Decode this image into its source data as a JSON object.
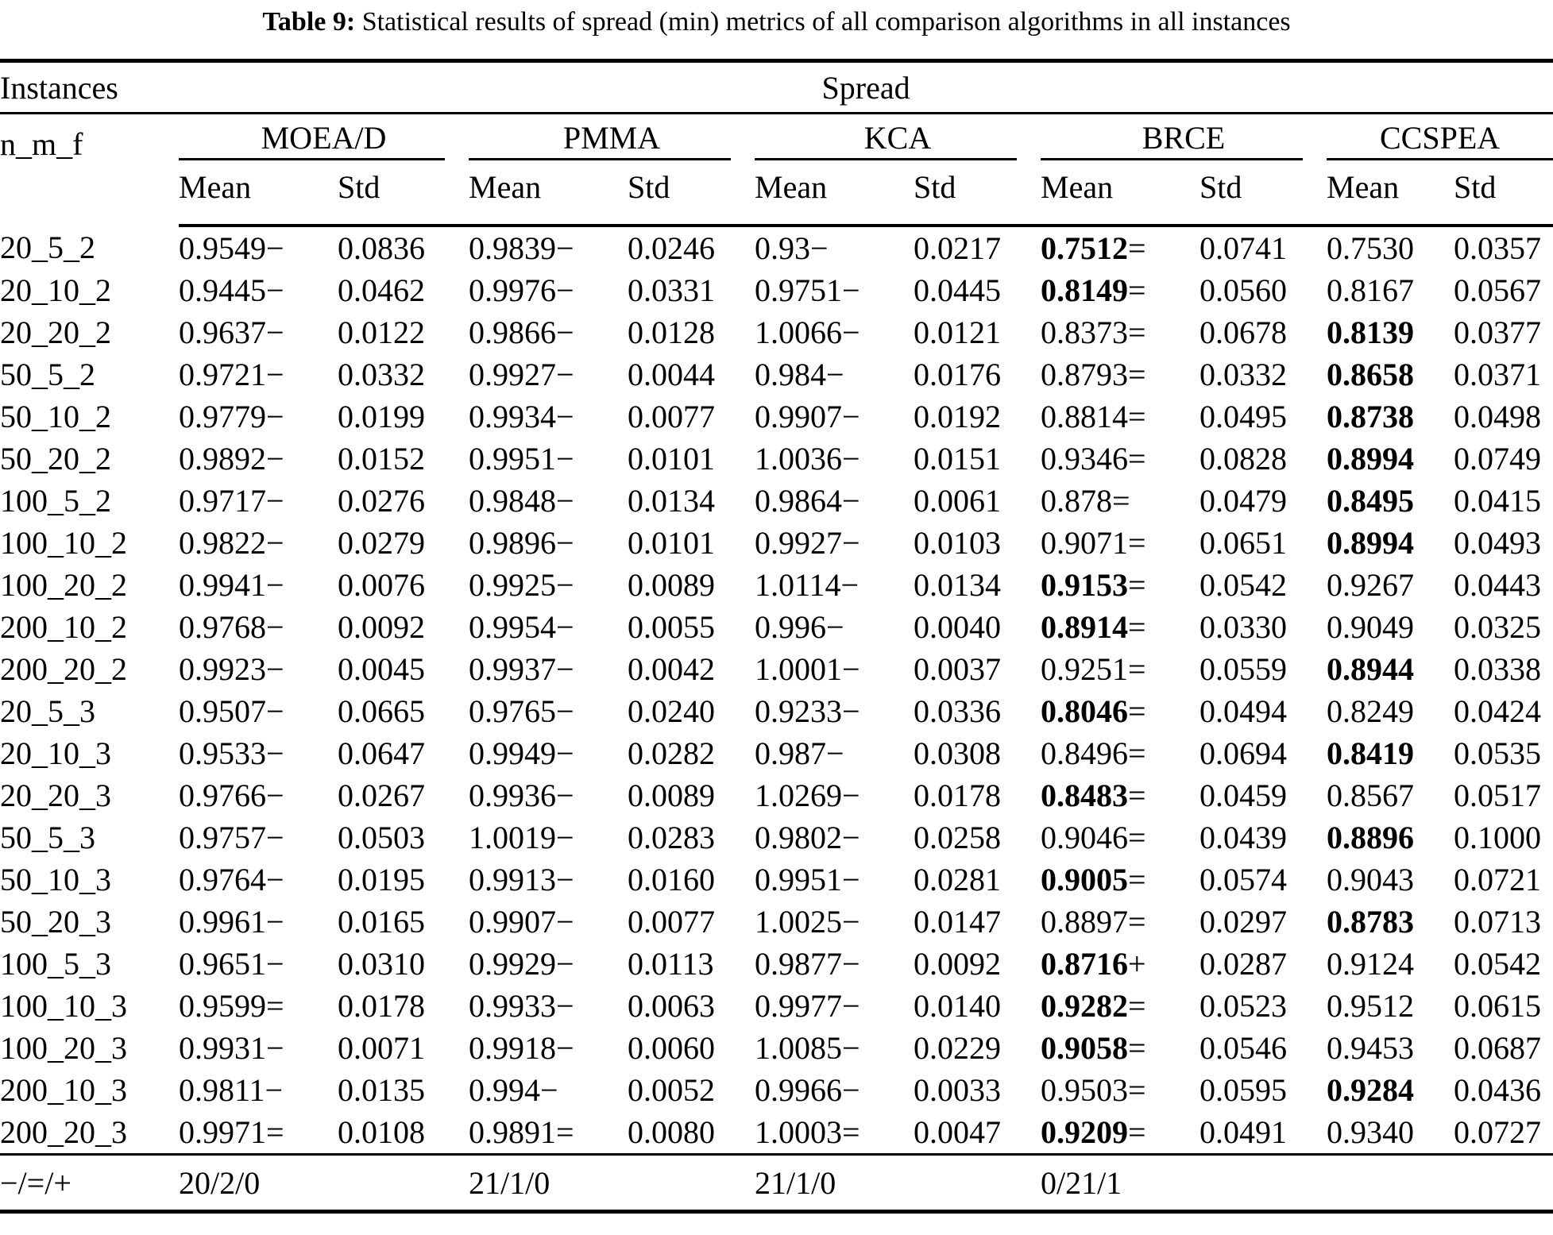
{
  "title": {
    "label": "Table 9:",
    "text": "Statistical results of spread (min) metrics of all comparison algorithms in all instances"
  },
  "header": {
    "instances": "Instances",
    "spread": "Spread",
    "instance_sub": "n_m_f",
    "algorithms": [
      "MOEA/D",
      "PMMA",
      "KCA",
      "BRCE",
      "CCSPEA"
    ],
    "stats": [
      "Mean",
      "Std"
    ]
  },
  "rows": [
    {
      "instance": "20_5_2",
      "cells": [
        {
          "mean": "0.9549",
          "sign": "−",
          "bold": false,
          "std": "0.0836"
        },
        {
          "mean": "0.9839",
          "sign": "−",
          "bold": false,
          "std": "0.0246"
        },
        {
          "mean": "0.93",
          "sign": "−",
          "bold": false,
          "std": "0.0217"
        },
        {
          "mean": "0.7512",
          "sign": "=",
          "bold": true,
          "std": "0.0741"
        },
        {
          "mean": "0.7530",
          "sign": "",
          "bold": false,
          "std": "0.0357"
        }
      ]
    },
    {
      "instance": "20_10_2",
      "cells": [
        {
          "mean": "0.9445",
          "sign": "−",
          "bold": false,
          "std": "0.0462"
        },
        {
          "mean": "0.9976",
          "sign": "−",
          "bold": false,
          "std": "0.0331"
        },
        {
          "mean": "0.9751",
          "sign": "−",
          "bold": false,
          "std": "0.0445"
        },
        {
          "mean": "0.8149",
          "sign": "=",
          "bold": true,
          "std": "0.0560"
        },
        {
          "mean": "0.8167",
          "sign": "",
          "bold": false,
          "std": "0.0567"
        }
      ]
    },
    {
      "instance": "20_20_2",
      "cells": [
        {
          "mean": "0.9637",
          "sign": "−",
          "bold": false,
          "std": "0.0122"
        },
        {
          "mean": "0.9866",
          "sign": "−",
          "bold": false,
          "std": "0.0128"
        },
        {
          "mean": "1.0066",
          "sign": "−",
          "bold": false,
          "std": "0.0121"
        },
        {
          "mean": "0.8373",
          "sign": "=",
          "bold": false,
          "std": "0.0678"
        },
        {
          "mean": "0.8139",
          "sign": "",
          "bold": true,
          "std": "0.0377"
        }
      ]
    },
    {
      "instance": "50_5_2",
      "cells": [
        {
          "mean": "0.9721",
          "sign": "−",
          "bold": false,
          "std": "0.0332"
        },
        {
          "mean": "0.9927",
          "sign": "−",
          "bold": false,
          "std": "0.0044"
        },
        {
          "mean": "0.984",
          "sign": "−",
          "bold": false,
          "std": "0.0176"
        },
        {
          "mean": "0.8793",
          "sign": "=",
          "bold": false,
          "std": "0.0332"
        },
        {
          "mean": "0.8658",
          "sign": "",
          "bold": true,
          "std": "0.0371"
        }
      ]
    },
    {
      "instance": "50_10_2",
      "cells": [
        {
          "mean": "0.9779",
          "sign": "−",
          "bold": false,
          "std": "0.0199"
        },
        {
          "mean": "0.9934",
          "sign": "−",
          "bold": false,
          "std": "0.0077"
        },
        {
          "mean": "0.9907",
          "sign": "−",
          "bold": false,
          "std": "0.0192"
        },
        {
          "mean": "0.8814",
          "sign": "=",
          "bold": false,
          "std": "0.0495"
        },
        {
          "mean": "0.8738",
          "sign": "",
          "bold": true,
          "std": "0.0498"
        }
      ]
    },
    {
      "instance": "50_20_2",
      "cells": [
        {
          "mean": "0.9892",
          "sign": "−",
          "bold": false,
          "std": "0.0152"
        },
        {
          "mean": "0.9951",
          "sign": "−",
          "bold": false,
          "std": "0.0101"
        },
        {
          "mean": "1.0036",
          "sign": "−",
          "bold": false,
          "std": "0.0151"
        },
        {
          "mean": "0.9346",
          "sign": "=",
          "bold": false,
          "std": "0.0828"
        },
        {
          "mean": "0.8994",
          "sign": "",
          "bold": true,
          "std": "0.0749"
        }
      ]
    },
    {
      "instance": "100_5_2",
      "cells": [
        {
          "mean": "0.9717",
          "sign": "−",
          "bold": false,
          "std": "0.0276"
        },
        {
          "mean": "0.9848",
          "sign": "−",
          "bold": false,
          "std": "0.0134"
        },
        {
          "mean": "0.9864",
          "sign": "−",
          "bold": false,
          "std": "0.0061"
        },
        {
          "mean": "0.878",
          "sign": "=",
          "bold": false,
          "std": "0.0479"
        },
        {
          "mean": "0.8495",
          "sign": "",
          "bold": true,
          "std": "0.0415"
        }
      ]
    },
    {
      "instance": "100_10_2",
      "cells": [
        {
          "mean": "0.9822",
          "sign": "−",
          "bold": false,
          "std": "0.0279"
        },
        {
          "mean": "0.9896",
          "sign": "−",
          "bold": false,
          "std": "0.0101"
        },
        {
          "mean": "0.9927",
          "sign": "−",
          "bold": false,
          "std": "0.0103"
        },
        {
          "mean": "0.9071",
          "sign": "=",
          "bold": false,
          "std": "0.0651"
        },
        {
          "mean": "0.8994",
          "sign": "",
          "bold": true,
          "std": "0.0493"
        }
      ]
    },
    {
      "instance": "100_20_2",
      "cells": [
        {
          "mean": "0.9941",
          "sign": "−",
          "bold": false,
          "std": "0.0076"
        },
        {
          "mean": "0.9925",
          "sign": "−",
          "bold": false,
          "std": "0.0089"
        },
        {
          "mean": "1.0114",
          "sign": "−",
          "bold": false,
          "std": "0.0134"
        },
        {
          "mean": "0.9153",
          "sign": "=",
          "bold": true,
          "std": "0.0542"
        },
        {
          "mean": "0.9267",
          "sign": "",
          "bold": false,
          "std": "0.0443"
        }
      ]
    },
    {
      "instance": "200_10_2",
      "cells": [
        {
          "mean": "0.9768",
          "sign": "−",
          "bold": false,
          "std": "0.0092"
        },
        {
          "mean": "0.9954",
          "sign": "−",
          "bold": false,
          "std": "0.0055"
        },
        {
          "mean": "0.996",
          "sign": "−",
          "bold": false,
          "std": "0.0040"
        },
        {
          "mean": "0.8914",
          "sign": "=",
          "bold": true,
          "std": "0.0330"
        },
        {
          "mean": "0.9049",
          "sign": "",
          "bold": false,
          "std": "0.0325"
        }
      ]
    },
    {
      "instance": "200_20_2",
      "cells": [
        {
          "mean": "0.9923",
          "sign": "−",
          "bold": false,
          "std": "0.0045"
        },
        {
          "mean": "0.9937",
          "sign": "−",
          "bold": false,
          "std": "0.0042"
        },
        {
          "mean": "1.0001",
          "sign": "−",
          "bold": false,
          "std": "0.0037"
        },
        {
          "mean": "0.9251",
          "sign": "=",
          "bold": false,
          "std": "0.0559"
        },
        {
          "mean": "0.8944",
          "sign": "",
          "bold": true,
          "std": "0.0338"
        }
      ]
    },
    {
      "instance": "20_5_3",
      "cells": [
        {
          "mean": "0.9507",
          "sign": "−",
          "bold": false,
          "std": "0.0665"
        },
        {
          "mean": "0.9765",
          "sign": "−",
          "bold": false,
          "std": "0.0240"
        },
        {
          "mean": "0.9233",
          "sign": "−",
          "bold": false,
          "std": "0.0336"
        },
        {
          "mean": "0.8046",
          "sign": "=",
          "bold": true,
          "std": "0.0494"
        },
        {
          "mean": "0.8249",
          "sign": "",
          "bold": false,
          "std": "0.0424"
        }
      ]
    },
    {
      "instance": "20_10_3",
      "cells": [
        {
          "mean": "0.9533",
          "sign": "−",
          "bold": false,
          "std": "0.0647"
        },
        {
          "mean": "0.9949",
          "sign": "−",
          "bold": false,
          "std": "0.0282"
        },
        {
          "mean": "0.987",
          "sign": "−",
          "bold": false,
          "std": "0.0308"
        },
        {
          "mean": "0.8496",
          "sign": "=",
          "bold": false,
          "std": "0.0694"
        },
        {
          "mean": "0.8419",
          "sign": "",
          "bold": true,
          "std": "0.0535"
        }
      ]
    },
    {
      "instance": "20_20_3",
      "cells": [
        {
          "mean": "0.9766",
          "sign": "−",
          "bold": false,
          "std": "0.0267"
        },
        {
          "mean": "0.9936",
          "sign": "−",
          "bold": false,
          "std": "0.0089"
        },
        {
          "mean": "1.0269",
          "sign": "−",
          "bold": false,
          "std": "0.0178"
        },
        {
          "mean": "0.8483",
          "sign": "=",
          "bold": true,
          "std": "0.0459"
        },
        {
          "mean": "0.8567",
          "sign": "",
          "bold": false,
          "std": "0.0517"
        }
      ]
    },
    {
      "instance": "50_5_3",
      "cells": [
        {
          "mean": "0.9757",
          "sign": "−",
          "bold": false,
          "std": "0.0503"
        },
        {
          "mean": "1.0019",
          "sign": "−",
          "bold": false,
          "std": "0.0283"
        },
        {
          "mean": "0.9802",
          "sign": "−",
          "bold": false,
          "std": "0.0258"
        },
        {
          "mean": "0.9046",
          "sign": "=",
          "bold": false,
          "std": "0.0439"
        },
        {
          "mean": "0.8896",
          "sign": "",
          "bold": true,
          "std": "0.1000"
        }
      ]
    },
    {
      "instance": "50_10_3",
      "cells": [
        {
          "mean": "0.9764",
          "sign": "−",
          "bold": false,
          "std": "0.0195"
        },
        {
          "mean": "0.9913",
          "sign": "−",
          "bold": false,
          "std": "0.0160"
        },
        {
          "mean": "0.9951",
          "sign": "−",
          "bold": false,
          "std": "0.0281"
        },
        {
          "mean": "0.9005",
          "sign": "=",
          "bold": true,
          "std": "0.0574"
        },
        {
          "mean": "0.9043",
          "sign": "",
          "bold": false,
          "std": "0.0721"
        }
      ]
    },
    {
      "instance": "50_20_3",
      "cells": [
        {
          "mean": "0.9961",
          "sign": "−",
          "bold": false,
          "std": "0.0165"
        },
        {
          "mean": "0.9907",
          "sign": "−",
          "bold": false,
          "std": "0.0077"
        },
        {
          "mean": "1.0025",
          "sign": "−",
          "bold": false,
          "std": "0.0147"
        },
        {
          "mean": "0.8897",
          "sign": "=",
          "bold": false,
          "std": "0.0297"
        },
        {
          "mean": "0.8783",
          "sign": "",
          "bold": true,
          "std": "0.0713"
        }
      ]
    },
    {
      "instance": "100_5_3",
      "cells": [
        {
          "mean": "0.9651",
          "sign": "−",
          "bold": false,
          "std": "0.0310"
        },
        {
          "mean": "0.9929",
          "sign": "−",
          "bold": false,
          "std": "0.0113"
        },
        {
          "mean": "0.9877",
          "sign": "−",
          "bold": false,
          "std": "0.0092"
        },
        {
          "mean": "0.8716",
          "sign": "+",
          "bold": true,
          "std": "0.0287"
        },
        {
          "mean": "0.9124",
          "sign": "",
          "bold": false,
          "std": "0.0542"
        }
      ]
    },
    {
      "instance": "100_10_3",
      "cells": [
        {
          "mean": "0.9599",
          "sign": "=",
          "bold": false,
          "std": "0.0178"
        },
        {
          "mean": "0.9933",
          "sign": "−",
          "bold": false,
          "std": "0.0063"
        },
        {
          "mean": "0.9977",
          "sign": "−",
          "bold": false,
          "std": "0.0140"
        },
        {
          "mean": "0.9282",
          "sign": "=",
          "bold": true,
          "std": "0.0523"
        },
        {
          "mean": "0.9512",
          "sign": "",
          "bold": false,
          "std": "0.0615"
        }
      ]
    },
    {
      "instance": "100_20_3",
      "cells": [
        {
          "mean": "0.9931",
          "sign": "−",
          "bold": false,
          "std": "0.0071"
        },
        {
          "mean": "0.9918",
          "sign": "−",
          "bold": false,
          "std": "0.0060"
        },
        {
          "mean": "1.0085",
          "sign": "−",
          "bold": false,
          "std": "0.0229"
        },
        {
          "mean": "0.9058",
          "sign": "=",
          "bold": true,
          "std": "0.0546"
        },
        {
          "mean": "0.9453",
          "sign": "",
          "bold": false,
          "std": "0.0687"
        }
      ]
    },
    {
      "instance": "200_10_3",
      "cells": [
        {
          "mean": "0.9811",
          "sign": "−",
          "bold": false,
          "std": "0.0135"
        },
        {
          "mean": "0.994",
          "sign": "−",
          "bold": false,
          "std": "0.0052"
        },
        {
          "mean": "0.9966",
          "sign": "−",
          "bold": false,
          "std": "0.0033"
        },
        {
          "mean": "0.9503",
          "sign": "=",
          "bold": false,
          "std": "0.0595"
        },
        {
          "mean": "0.9284",
          "sign": "",
          "bold": true,
          "std": "0.0436"
        }
      ]
    },
    {
      "instance": "200_20_3",
      "cells": [
        {
          "mean": "0.9971",
          "sign": "=",
          "bold": false,
          "std": "0.0108"
        },
        {
          "mean": "0.9891",
          "sign": "=",
          "bold": false,
          "std": "0.0080"
        },
        {
          "mean": "1.0003",
          "sign": "=",
          "bold": false,
          "std": "0.0047"
        },
        {
          "mean": "0.9209",
          "sign": "=",
          "bold": true,
          "std": "0.0491"
        },
        {
          "mean": "0.9340",
          "sign": "",
          "bold": false,
          "std": "0.0727"
        }
      ]
    }
  ],
  "summary": {
    "label": "−/=/+",
    "values": [
      "20/2/0",
      "21/1/0",
      "21/1/0",
      "0/21/1",
      ""
    ]
  }
}
